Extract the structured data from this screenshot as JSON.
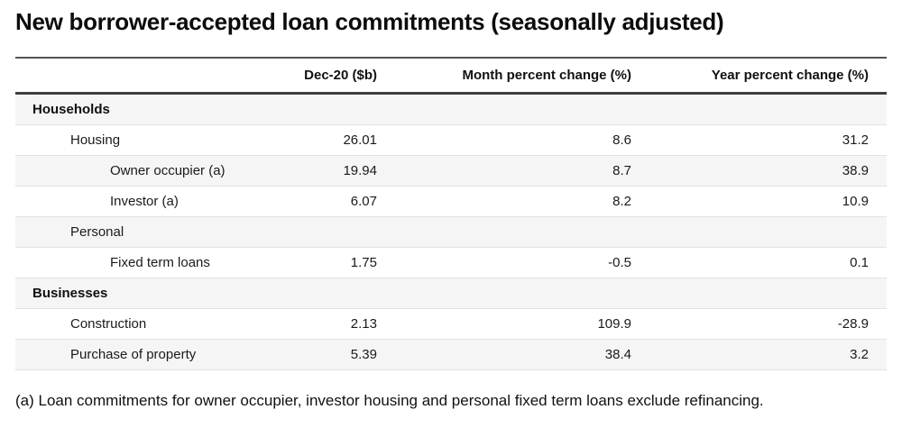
{
  "chart_data": {
    "type": "table",
    "title": "New borrower-accepted loan commitments (seasonally adjusted)",
    "columns": [
      "Dec-20 ($b)",
      "Month percent change (%)",
      "Year percent change (%)"
    ],
    "rows": [
      {
        "label": "Households",
        "indent": 0,
        "section": true,
        "dec20": null,
        "month_pct": null,
        "year_pct": null
      },
      {
        "label": "Housing",
        "indent": 1,
        "section": false,
        "dec20": 26.01,
        "month_pct": 8.6,
        "year_pct": 31.2
      },
      {
        "label": "Owner occupier (a)",
        "indent": 2,
        "section": false,
        "dec20": 19.94,
        "month_pct": 8.7,
        "year_pct": 38.9
      },
      {
        "label": "Investor (a)",
        "indent": 2,
        "section": false,
        "dec20": 6.07,
        "month_pct": 8.2,
        "year_pct": 10.9
      },
      {
        "label": "Personal",
        "indent": 1,
        "section": false,
        "dec20": null,
        "month_pct": null,
        "year_pct": null
      },
      {
        "label": "Fixed term loans",
        "indent": 2,
        "section": false,
        "dec20": 1.75,
        "month_pct": -0.5,
        "year_pct": 0.1
      },
      {
        "label": "Businesses",
        "indent": 0,
        "section": true,
        "dec20": null,
        "month_pct": null,
        "year_pct": null
      },
      {
        "label": "Construction",
        "indent": 1,
        "section": false,
        "dec20": 2.13,
        "month_pct": 109.9,
        "year_pct": -28.9
      },
      {
        "label": "Purchase of property",
        "indent": 1,
        "section": false,
        "dec20": 5.39,
        "month_pct": 38.4,
        "year_pct": 3.2
      }
    ],
    "footnote": "(a) Loan commitments for owner occupier, investor housing and personal fixed term loans exclude refinancing.",
    "layout_hints": {
      "striped_rows": true,
      "numeric_alignment": "right"
    }
  },
  "colors": {
    "stripe_background": "#f5f5f5",
    "row_separator": "#e2e2e2",
    "table_top_rule": "#545454",
    "header_bottom_rule": "#3f3f3f",
    "text": "#161616",
    "page_background": "#ffffff"
  }
}
